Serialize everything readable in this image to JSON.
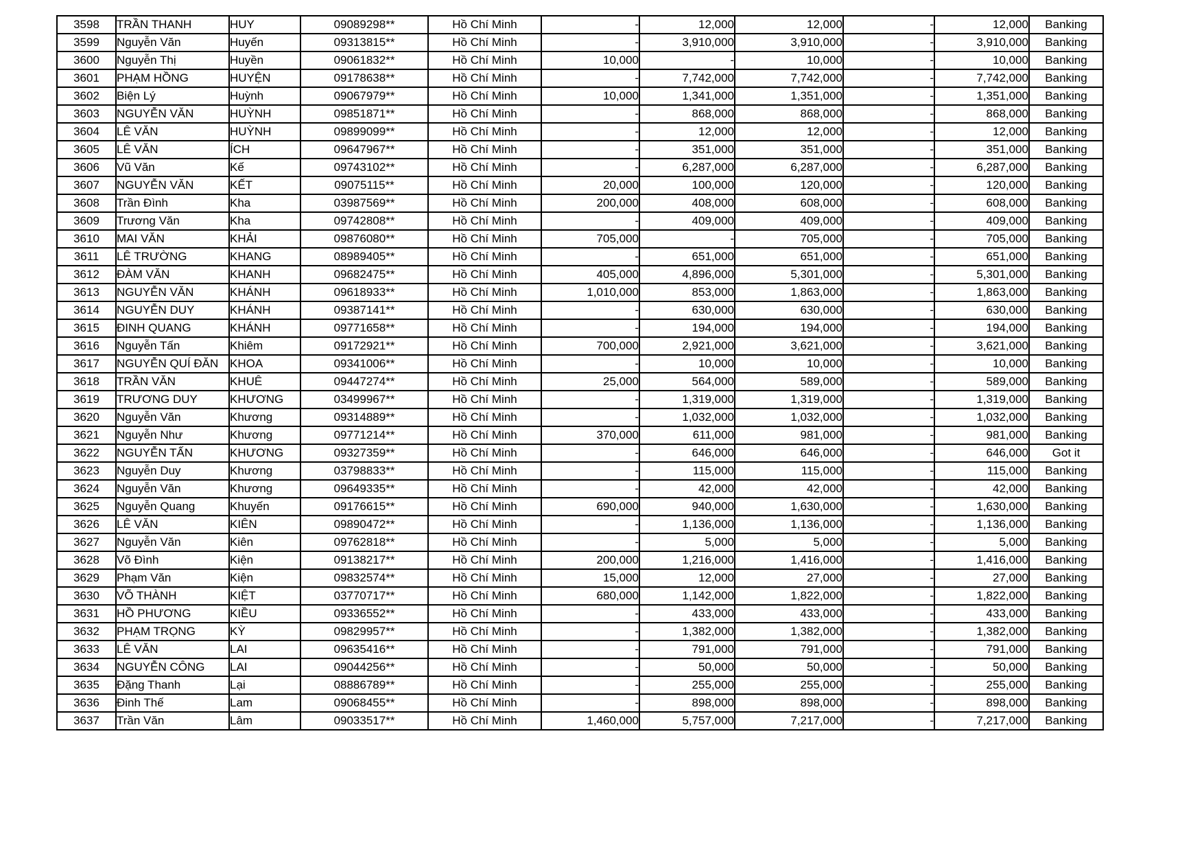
{
  "table": {
    "city_common": "Hồ Chí Minh",
    "status_common": "Banking",
    "status_alt": "Got it",
    "rows": [
      [
        "3598",
        "TRẦN THANH",
        "HUY",
        "09089298**",
        "Hồ Chí Minh",
        "-",
        "12,000",
        "12,000",
        "-",
        "12,000",
        "Banking"
      ],
      [
        "3599",
        "Nguyễn Văn",
        "Huyến",
        "09313815**",
        "Hồ Chí Minh",
        "-",
        "3,910,000",
        "3,910,000",
        "-",
        "3,910,000",
        "Banking"
      ],
      [
        "3600",
        "Nguyễn Thị",
        "Huyền",
        "09061832**",
        "Hồ Chí Minh",
        "10,000",
        "-",
        "10,000",
        "-",
        "10,000",
        "Banking"
      ],
      [
        "3601",
        "PHẠM HỒNG",
        "HUYỆN",
        "09178638**",
        "Hồ Chí Minh",
        "-",
        "7,742,000",
        "7,742,000",
        "-",
        "7,742,000",
        "Banking"
      ],
      [
        "3602",
        "Biện Lý",
        "Huỳnh",
        "09067979**",
        "Hồ Chí Minh",
        "10,000",
        "1,341,000",
        "1,351,000",
        "-",
        "1,351,000",
        "Banking"
      ],
      [
        "3603",
        "NGUYỄN VĂN",
        "HUỲNH",
        "09851871**",
        "Hồ Chí Minh",
        "-",
        "868,000",
        "868,000",
        "-",
        "868,000",
        "Banking"
      ],
      [
        "3604",
        "LÊ VĂN",
        "HUỲNH",
        "09899099**",
        "Hồ Chí Minh",
        "-",
        "12,000",
        "12,000",
        "-",
        "12,000",
        "Banking"
      ],
      [
        "3605",
        "LÊ VĂN",
        "ÍCH",
        "09647967**",
        "Hồ Chí Minh",
        "-",
        "351,000",
        "351,000",
        "-",
        "351,000",
        "Banking"
      ],
      [
        "3606",
        "Vũ Văn",
        "Kế",
        "09743102**",
        "Hồ Chí Minh",
        "-",
        "6,287,000",
        "6,287,000",
        "-",
        "6,287,000",
        "Banking"
      ],
      [
        "3607",
        "NGUYỄN VĂN",
        "KẾT",
        "09075115**",
        "Hồ Chí Minh",
        "20,000",
        "100,000",
        "120,000",
        "-",
        "120,000",
        "Banking"
      ],
      [
        "3608",
        "Trần Đình",
        "Kha",
        "03987569**",
        "Hồ Chí Minh",
        "200,000",
        "408,000",
        "608,000",
        "-",
        "608,000",
        "Banking"
      ],
      [
        "3609",
        "Trương Văn",
        "Kha",
        "09742808**",
        "Hồ Chí Minh",
        "-",
        "409,000",
        "409,000",
        "-",
        "409,000",
        "Banking"
      ],
      [
        "3610",
        "MAI VĂN",
        "KHẢI",
        "09876080**",
        "Hồ Chí Minh",
        "705,000",
        "-",
        "705,000",
        "-",
        "705,000",
        "Banking"
      ],
      [
        "3611",
        "LÊ TRƯỜNG",
        "KHANG",
        "08989405**",
        "Hồ Chí Minh",
        "-",
        "651,000",
        "651,000",
        "-",
        "651,000",
        "Banking"
      ],
      [
        "3612",
        "ĐÀM VĂN",
        "KHANH",
        "09682475**",
        "Hồ Chí Minh",
        "405,000",
        "4,896,000",
        "5,301,000",
        "-",
        "5,301,000",
        "Banking"
      ],
      [
        "3613",
        "NGUYỄN VĂN",
        "KHÁNH",
        "09618933**",
        "Hồ Chí Minh",
        "1,010,000",
        "853,000",
        "1,863,000",
        "-",
        "1,863,000",
        "Banking"
      ],
      [
        "3614",
        "NGUYỄN DUY",
        "KHÁNH",
        "09387141**",
        "Hồ Chí Minh",
        "-",
        "630,000",
        "630,000",
        "-",
        "630,000",
        "Banking"
      ],
      [
        "3615",
        "ĐINH QUANG",
        "KHÁNH",
        "09771658**",
        "Hồ Chí Minh",
        "-",
        "194,000",
        "194,000",
        "-",
        "194,000",
        "Banking"
      ],
      [
        "3616",
        "Nguyễn Tấn",
        "Khiêm",
        "09172921**",
        "Hồ Chí Minh",
        "700,000",
        "2,921,000",
        "3,621,000",
        "-",
        "3,621,000",
        "Banking"
      ],
      [
        "3617",
        "NGUYỄN QUÍ ĐĂN",
        "KHOA",
        "09341006**",
        "Hồ Chí Minh",
        "-",
        "10,000",
        "10,000",
        "-",
        "10,000",
        "Banking"
      ],
      [
        "3618",
        "TRẦN VĂN",
        "KHUÊ",
        "09447274**",
        "Hồ Chí Minh",
        "25,000",
        "564,000",
        "589,000",
        "-",
        "589,000",
        "Banking"
      ],
      [
        "3619",
        "TRƯƠNG DUY",
        "KHƯƠNG",
        "03499967**",
        "Hồ Chí Minh",
        "-",
        "1,319,000",
        "1,319,000",
        "-",
        "1,319,000",
        "Banking"
      ],
      [
        "3620",
        "Nguyễn Văn",
        "Khương",
        "09314889**",
        "Hồ Chí Minh",
        "-",
        "1,032,000",
        "1,032,000",
        "-",
        "1,032,000",
        "Banking"
      ],
      [
        "3621",
        "Nguyễn Như",
        "Khương",
        "09771214**",
        "Hồ Chí Minh",
        "370,000",
        "611,000",
        "981,000",
        "-",
        "981,000",
        "Banking"
      ],
      [
        "3622",
        "NGUYỄN TẤN",
        "KHƯƠNG",
        "09327359**",
        "Hồ Chí Minh",
        "-",
        "646,000",
        "646,000",
        "-",
        "646,000",
        "Got it"
      ],
      [
        "3623",
        "Nguyễn Duy",
        "Khương",
        "03798833**",
        "Hồ Chí Minh",
        "-",
        "115,000",
        "115,000",
        "-",
        "115,000",
        "Banking"
      ],
      [
        "3624",
        "Nguyễn Văn",
        "Khương",
        "09649335**",
        "Hồ Chí Minh",
        "-",
        "42,000",
        "42,000",
        "-",
        "42,000",
        "Banking"
      ],
      [
        "3625",
        "Nguyễn Quang",
        "Khuyến",
        "09176615**",
        "Hồ Chí Minh",
        "690,000",
        "940,000",
        "1,630,000",
        "-",
        "1,630,000",
        "Banking"
      ],
      [
        "3626",
        "LÊ VĂN",
        "KIÊN",
        "09890472**",
        "Hồ Chí Minh",
        "-",
        "1,136,000",
        "1,136,000",
        "-",
        "1,136,000",
        "Banking"
      ],
      [
        "3627",
        "Nguyễn Văn",
        "Kiên",
        "09762818**",
        "Hồ Chí Minh",
        "-",
        "5,000",
        "5,000",
        "-",
        "5,000",
        "Banking"
      ],
      [
        "3628",
        "Võ Đình",
        "Kiện",
        "09138217**",
        "Hồ Chí Minh",
        "200,000",
        "1,216,000",
        "1,416,000",
        "-",
        "1,416,000",
        "Banking"
      ],
      [
        "3629",
        "Phạm Văn",
        "Kiện",
        "09832574**",
        "Hồ Chí Minh",
        "15,000",
        "12,000",
        "27,000",
        "-",
        "27,000",
        "Banking"
      ],
      [
        "3630",
        "VÕ THÀNH",
        "KIỆT",
        "03770717**",
        "Hồ Chí Minh",
        "680,000",
        "1,142,000",
        "1,822,000",
        "-",
        "1,822,000",
        "Banking"
      ],
      [
        "3631",
        "HỒ PHƯƠNG",
        "KIỀU",
        "09336552**",
        "Hồ Chí Minh",
        "-",
        "433,000",
        "433,000",
        "-",
        "433,000",
        "Banking"
      ],
      [
        "3632",
        "PHẠM TRỌNG",
        "KỲ",
        "09829957**",
        "Hồ Chí Minh",
        "-",
        "1,382,000",
        "1,382,000",
        "-",
        "1,382,000",
        "Banking"
      ],
      [
        "3633",
        "LÊ VĂN",
        "LAI",
        "09635416**",
        "Hồ Chí Minh",
        "-",
        "791,000",
        "791,000",
        "-",
        "791,000",
        "Banking"
      ],
      [
        "3634",
        "NGUYỄN CÔNG",
        "LAI",
        "09044256**",
        "Hồ Chí Minh",
        "-",
        "50,000",
        "50,000",
        "-",
        "50,000",
        "Banking"
      ],
      [
        "3635",
        "Đặng Thanh",
        "Lại",
        "08886789**",
        "Hồ Chí Minh",
        "-",
        "255,000",
        "255,000",
        "-",
        "255,000",
        "Banking"
      ],
      [
        "3636",
        "Đinh Thế",
        "Lam",
        "09068455**",
        "Hồ Chí Minh",
        "-",
        "898,000",
        "898,000",
        "-",
        "898,000",
        "Banking"
      ],
      [
        "3637",
        "Trần Văn",
        "Lâm",
        "09033517**",
        "Hồ Chí Minh",
        "1,460,000",
        "5,757,000",
        "7,217,000",
        "-",
        "7,217,000",
        "Banking"
      ]
    ]
  }
}
